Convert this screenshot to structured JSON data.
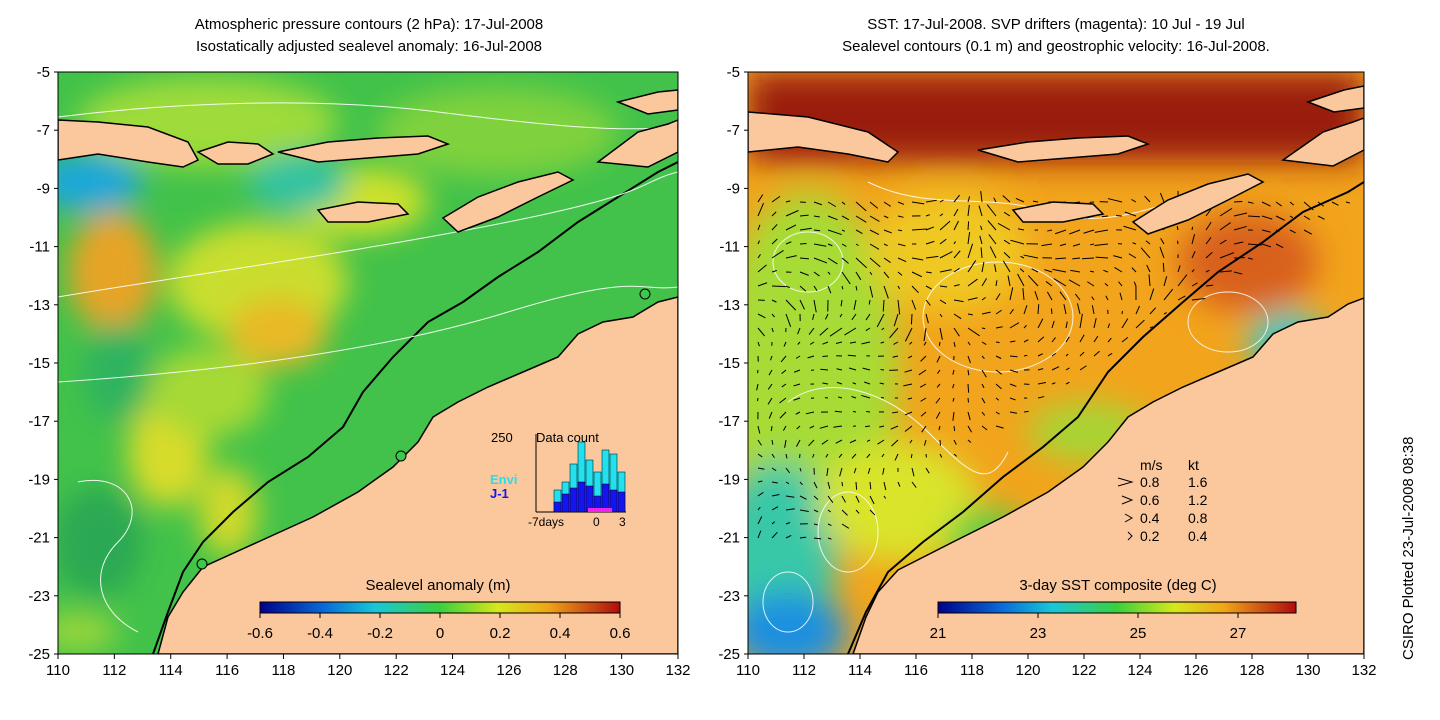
{
  "left_panel": {
    "title_line1": "Atmospheric pressure contours (2 hPa): 17-Jul-2008",
    "title_line2": "Isostatically adjusted sealevel anomaly: 16-Jul-2008",
    "colorbar_title": "Sealevel anomaly (m)",
    "colorbar_ticks": [
      "-0.6",
      "-0.4",
      "-0.2",
      "0",
      "0.2",
      "0.4",
      "0.6"
    ],
    "inset": {
      "title": "Data count",
      "max_label": "250",
      "x_ticks": [
        "-7days",
        "0",
        "3"
      ],
      "legend": [
        {
          "label": "Envi",
          "color": "#22e0ee"
        },
        {
          "label": "J-1",
          "color": "#1414ee"
        }
      ]
    }
  },
  "right_panel": {
    "title_line1": "SST: 17-Jul-2008. SVP drifters (magenta): 10 Jul - 19 Jul",
    "title_line2": "Sealevel contours (0.1 m) and geostrophic velocity: 16-Jul-2008.",
    "colorbar_title": "3-day SST composite (deg C)",
    "colorbar_ticks": [
      "21",
      "23",
      "25",
      "27"
    ],
    "velocity_key": {
      "header_ms": "m/s",
      "header_kt": "kt",
      "rows": [
        {
          "ms": "0.8",
          "kt": "1.6"
        },
        {
          "ms": "0.6",
          "kt": "1.2"
        },
        {
          "ms": "0.4",
          "kt": "0.8"
        },
        {
          "ms": "0.2",
          "kt": "0.4"
        }
      ]
    }
  },
  "axes": {
    "x_ticks": [
      "110",
      "112",
      "114",
      "116",
      "118",
      "120",
      "122",
      "124",
      "126",
      "128",
      "130",
      "132"
    ],
    "y_ticks": [
      "-5",
      "-7",
      "-9",
      "-11",
      "-13",
      "-15",
      "-17",
      "-19",
      "-21",
      "-23",
      "-25"
    ]
  },
  "credit": "CSIRO Plotted 23-Jul-2008 08:38",
  "colors": {
    "land": "#fbc89e",
    "sla_bg": "#42c24a",
    "sst_bg": "#f2a41c"
  }
}
